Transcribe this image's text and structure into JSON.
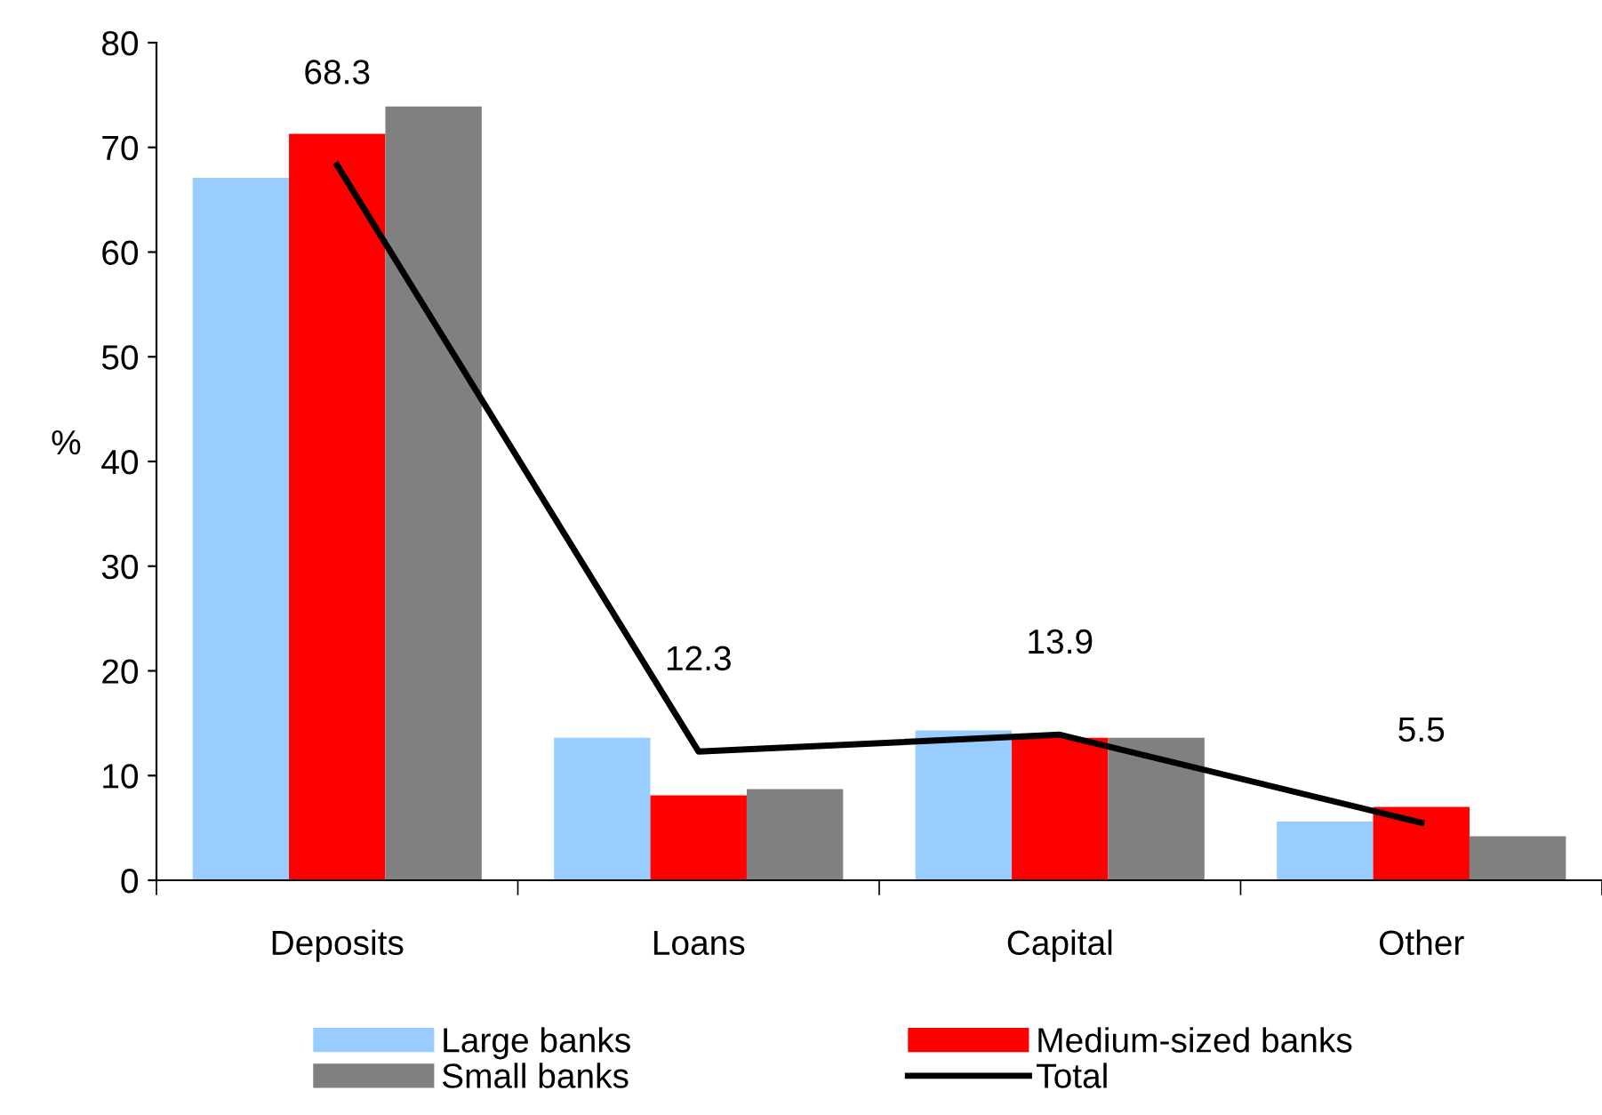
{
  "chart_data": {
    "type": "bar",
    "ylabel": "%",
    "categories": [
      "Deposits",
      "Loans",
      "Capital",
      "Other"
    ],
    "ylim": [
      0,
      80
    ],
    "yticks": [
      0,
      10,
      20,
      30,
      40,
      50,
      60,
      70,
      80
    ],
    "grid": false,
    "legend": "bottom",
    "series": [
      {
        "name": "Large banks",
        "color": "#99ccff",
        "values": [
          67.1,
          13.6,
          14.3,
          5.6
        ]
      },
      {
        "name": "Medium-sized banks",
        "color": "#ff0000",
        "values": [
          71.3,
          8.1,
          13.6,
          7.0
        ]
      },
      {
        "name": "Small banks",
        "color": "#808080",
        "values": [
          73.9,
          8.7,
          13.6,
          4.2
        ]
      },
      {
        "name": "Total",
        "type": "line",
        "color": "#000000",
        "marker": "none",
        "line_style": "solid",
        "values": [
          68.3,
          12.3,
          13.9,
          5.5
        ],
        "value_labels": [
          "68.3",
          "12.3",
          "13.9",
          "5.5"
        ]
      }
    ]
  }
}
